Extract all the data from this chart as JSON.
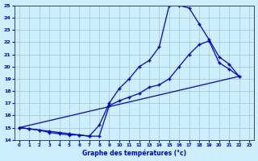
{
  "xlabel": "Graphe des températures (°c)",
  "background_color": "#cceeff",
  "grid_color": "#aacccc",
  "line_color": "#0000cc",
  "xlim": [
    -0.5,
    23.5
  ],
  "ylim": [
    14,
    25
  ],
  "yticks": [
    14,
    15,
    16,
    17,
    18,
    19,
    20,
    21,
    22,
    23,
    24,
    25
  ],
  "xticks": [
    0,
    1,
    2,
    3,
    4,
    5,
    6,
    7,
    8,
    9,
    10,
    11,
    12,
    13,
    14,
    15,
    16,
    17,
    18,
    19,
    20,
    21,
    22,
    23
  ],
  "line1_x": [
    0,
    1,
    2,
    3,
    4,
    5,
    6,
    7,
    8,
    9,
    10,
    11,
    12,
    13,
    14,
    15,
    16,
    17,
    18,
    19,
    20,
    21,
    22
  ],
  "line1_y": [
    15.0,
    14.9,
    14.8,
    14.7,
    14.6,
    14.5,
    14.4,
    14.3,
    15.2,
    17.0,
    18.2,
    19.0,
    20.0,
    20.5,
    21.6,
    25.0,
    25.0,
    24.8,
    23.5,
    22.2,
    20.8,
    20.2,
    19.2
  ],
  "line2_x": [
    0,
    1,
    2,
    3,
    4,
    5,
    6,
    7,
    8,
    9,
    10,
    11,
    12,
    13,
    14,
    15,
    16,
    17,
    18,
    19,
    20,
    21,
    22
  ],
  "line2_y": [
    15.0,
    14.9,
    14.8,
    14.6,
    14.5,
    14.4,
    14.4,
    14.3,
    14.3,
    16.8,
    17.2,
    17.5,
    17.8,
    18.3,
    18.5,
    19.0,
    20.0,
    21.0,
    21.8,
    22.1,
    20.3,
    19.8,
    19.2
  ],
  "line3_x": [
    0,
    22
  ],
  "line3_y": [
    15.0,
    19.2
  ]
}
